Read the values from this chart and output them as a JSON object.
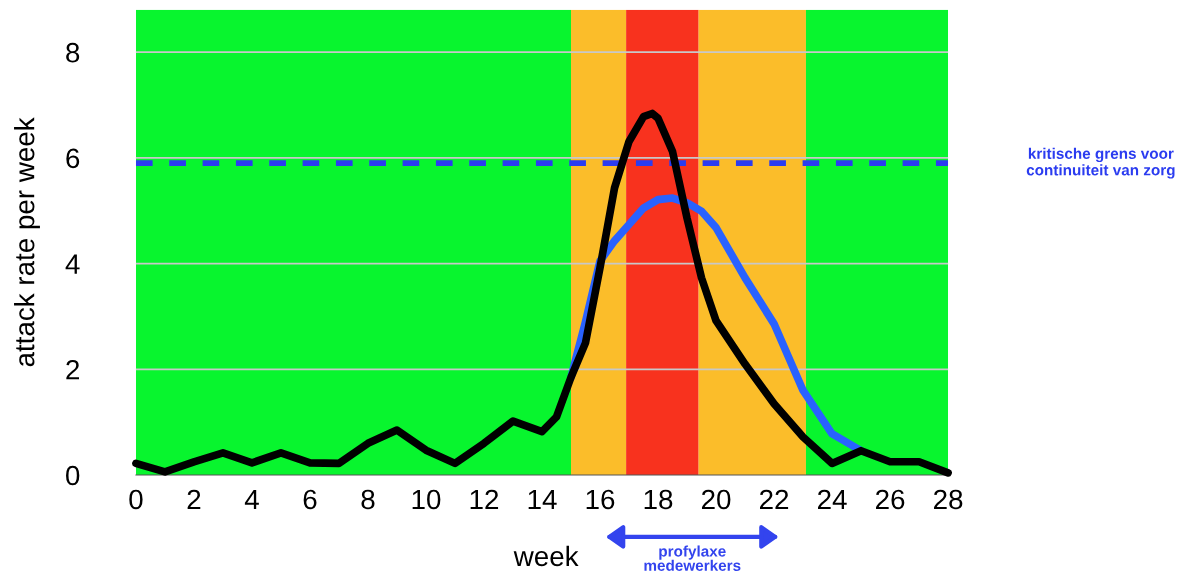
{
  "chart_data": {
    "type": "line",
    "xlabel": "week",
    "ylabel": "attack rate per week",
    "xlim": [
      0,
      28
    ],
    "xticks": [
      0,
      2,
      4,
      6,
      8,
      10,
      12,
      14,
      16,
      18,
      20,
      22,
      24,
      26,
      28
    ],
    "ylim": [
      0,
      8.8
    ],
    "yticks": [
      0,
      2,
      4,
      6,
      8
    ],
    "grid": "y",
    "line_style": "solid",
    "marker": "none",
    "series": [
      {
        "color": "#2962ff",
        "x": [
          15,
          15.5,
          16,
          16.5,
          17,
          17.5,
          18,
          18.5,
          19,
          19.5,
          20,
          21,
          22,
          23,
          24,
          25
        ],
        "values": [
          1.85,
          2.9,
          4.05,
          4.43,
          4.74,
          5.05,
          5.21,
          5.24,
          5.15,
          4.99,
          4.68,
          3.73,
          2.86,
          1.6,
          0.78,
          0.46
        ]
      },
      {
        "color": "#000000",
        "x": [
          0,
          1,
          2,
          3,
          4,
          5,
          6,
          7,
          8,
          9,
          10,
          11,
          12,
          13,
          14,
          14.5,
          15,
          15.5,
          16,
          16.5,
          17,
          17.5,
          17.8,
          18,
          18.5,
          19,
          19.5,
          20,
          21,
          22,
          23,
          24,
          25,
          26,
          27,
          28
        ],
        "values": [
          0.22,
          0.06,
          0.25,
          0.42,
          0.23,
          0.42,
          0.23,
          0.22,
          0.6,
          0.85,
          0.47,
          0.22,
          0.6,
          1.02,
          0.82,
          1.1,
          1.85,
          2.5,
          3.92,
          5.43,
          6.31,
          6.78,
          6.84,
          6.75,
          6.12,
          4.86,
          3.73,
          2.92,
          2.1,
          1.35,
          0.72,
          0.22,
          0.46,
          0.25,
          0.25,
          0.04
        ]
      }
    ],
    "bands": [
      {
        "axis": "x",
        "from": 0,
        "to": 15,
        "color": "#08f52e"
      },
      {
        "axis": "x",
        "from": 15,
        "to": 16.9,
        "color": "#fbbd2a"
      },
      {
        "axis": "x",
        "from": 16.9,
        "to": 19.4,
        "color": "#f8321e"
      },
      {
        "axis": "x",
        "from": 19.4,
        "to": 23.1,
        "color": "#fbbd2a"
      },
      {
        "axis": "x",
        "from": 23.1,
        "to": 28,
        "color": "#08f52e"
      }
    ],
    "ref_lines": [
      {
        "axis": "y",
        "value": 5.9,
        "label": "kritische grens voor\ncontinuiteit van zorg",
        "color": "#2b3cf0",
        "line_style": "dashed"
      }
    ],
    "annotations": [
      "profylaxe\nmedewerkers"
    ]
  }
}
